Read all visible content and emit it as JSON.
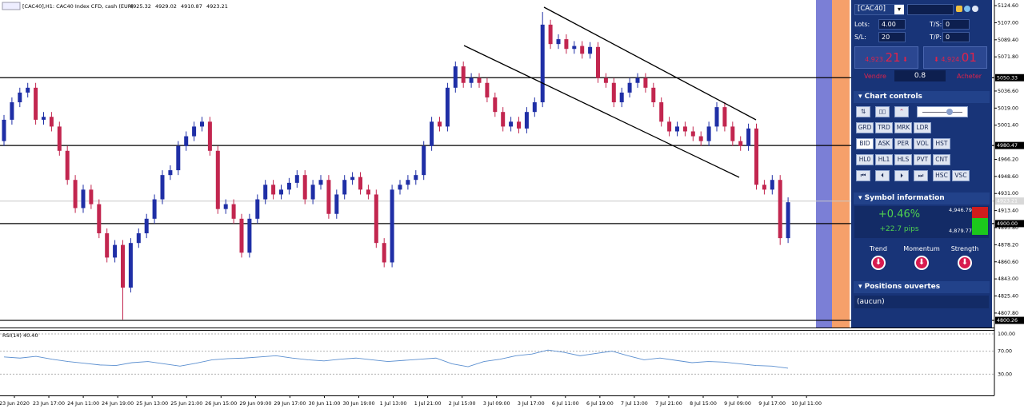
{
  "chart_data": [
    {
      "type": "candlestick",
      "title": "[CAC40],H1: CAC40 Index CFD, cash (EUR)",
      "ohlc": [
        4925.32,
        4929.02,
        4910.87,
        4923.21
      ],
      "up_color": "#1f2fa6",
      "down_color": "#c2264f",
      "open": [
        4985,
        5007,
        5025,
        5035,
        5040,
        5007,
        5010,
        5000,
        4975,
        4945,
        4916,
        4935,
        4920,
        4890,
        4865,
        4878,
        4834,
        4880,
        4890,
        4905,
        4925,
        4950,
        4955,
        4980,
        4990,
        5000,
        5005,
        4975,
        4915,
        4920,
        4905,
        4870,
        4905,
        4925,
        4940,
        4930,
        4935,
        4942,
        4950,
        4925,
        4940,
        4945,
        4910,
        4930,
        4945,
        4948,
        4935,
        4930,
        4880,
        4860,
        4935,
        4940,
        4945,
        4950,
        4980,
        5005,
        5000,
        5040,
        5062,
        5045,
        5050,
        5045,
        5030,
        5015,
        5000,
        5005,
        4998,
        5015,
        5025,
        5105,
        5085,
        5090,
        5080,
        5083,
        5075,
        5082,
        5050,
        5045,
        5025,
        5035,
        5045,
        5050,
        5040,
        5025,
        5005,
        4995,
        5000,
        4995,
        4990,
        4985,
        5000,
        5020,
        5000,
        4985,
        4980,
        4998,
        4940,
        4935,
        4945,
        4885
      ],
      "high": [
        5012,
        5030,
        5040,
        5045,
        5045,
        5015,
        5015,
        5005,
        4980,
        4950,
        4940,
        4940,
        4925,
        4895,
        4883,
        4883,
        4885,
        4895,
        4910,
        4930,
        4955,
        4960,
        4985,
        4995,
        5005,
        5010,
        5010,
        4980,
        4925,
        4925,
        4910,
        4910,
        4930,
        4945,
        4945,
        4940,
        4947,
        4955,
        4955,
        4945,
        4950,
        4950,
        4935,
        4950,
        4953,
        4953,
        4940,
        4935,
        4885,
        4940,
        4945,
        4950,
        4955,
        4985,
        5010,
        5010,
        5045,
        5067,
        5067,
        5055,
        5055,
        5050,
        5035,
        5020,
        5010,
        5010,
        5020,
        5030,
        5118,
        5110,
        5095,
        5095,
        5088,
        5088,
        5087,
        5087,
        5055,
        5050,
        5040,
        5050,
        5055,
        5055,
        5045,
        5030,
        5010,
        5005,
        5005,
        5000,
        4995,
        5005,
        5025,
        5025,
        5005,
        4990,
        5003,
        5003,
        4945,
        4950,
        4950,
        4927
      ],
      "low": [
        4980,
        5002,
        5020,
        5030,
        5002,
        5002,
        4995,
        4970,
        4940,
        4911,
        4911,
        4915,
        4885,
        4860,
        4860,
        4801,
        4829,
        4875,
        4885,
        4900,
        4920,
        4945,
        4950,
        4975,
        4985,
        4995,
        4970,
        4910,
        4910,
        4900,
        4865,
        4865,
        4900,
        4920,
        4925,
        4925,
        4930,
        4937,
        4920,
        4920,
        4935,
        4905,
        4905,
        4925,
        4940,
        4930,
        4925,
        4875,
        4855,
        4855,
        4930,
        4935,
        4940,
        4945,
        4975,
        4995,
        4995,
        5035,
        5040,
        5040,
        5040,
        5025,
        5010,
        4995,
        4995,
        4993,
        4993,
        5010,
        5020,
        5080,
        5080,
        5075,
        5075,
        5070,
        5070,
        5045,
        5040,
        5020,
        5020,
        5030,
        5040,
        5035,
        5020,
        5000,
        4990,
        4990,
        4990,
        4985,
        4980,
        4980,
        4995,
        4995,
        4980,
        4975,
        4975,
        4935,
        4930,
        4930,
        4878,
        4880
      ],
      "close": [
        5007,
        5025,
        5035,
        5040,
        5007,
        5010,
        5000,
        4975,
        4945,
        4916,
        4935,
        4920,
        4890,
        4865,
        4878,
        4834,
        4880,
        4890,
        4905,
        4925,
        4950,
        4955,
        4980,
        4990,
        5000,
        5005,
        4975,
        4915,
        4920,
        4905,
        4870,
        4905,
        4925,
        4940,
        4930,
        4935,
        4942,
        4950,
        4925,
        4940,
        4945,
        4910,
        4930,
        4945,
        4948,
        4935,
        4930,
        4880,
        4860,
        4935,
        4940,
        4945,
        4950,
        4980,
        5005,
        5000,
        5040,
        5062,
        5045,
        5050,
        5045,
        5030,
        5015,
        5000,
        5005,
        4998,
        5015,
        5025,
        5105,
        5085,
        5090,
        5080,
        5083,
        5075,
        5082,
        5050,
        5045,
        5025,
        5035,
        5045,
        5050,
        5040,
        5025,
        5005,
        4995,
        5000,
        4995,
        4990,
        4985,
        5000,
        5020,
        5000,
        4985,
        4980,
        4998,
        4940,
        4935,
        4945,
        4885,
        4922
      ],
      "ylim": [
        4792.9,
        5130.4
      ],
      "yticks": [
        {
          "value": 5124.6,
          "label": "5124.60"
        },
        {
          "value": 5107,
          "label": "5107.00"
        },
        {
          "value": 5089.4,
          "label": "5089.40"
        },
        {
          "value": 5071.8,
          "label": "5071.80"
        },
        {
          "value": 5036.6,
          "label": "5036.60"
        },
        {
          "value": 5019,
          "label": "5019.00"
        },
        {
          "value": 5001.4,
          "label": "5001.40"
        },
        {
          "value": 4966.2,
          "label": "4966.20"
        },
        {
          "value": 4948.6,
          "label": "4948.60"
        },
        {
          "value": 4931,
          "label": "4931.00"
        },
        {
          "value": 4913.4,
          "label": "4913.40"
        },
        {
          "value": 4895.8,
          "label": "4895.80"
        },
        {
          "value": 4878.2,
          "label": "4878.20"
        },
        {
          "value": 4860.6,
          "label": "4860.60"
        },
        {
          "value": 4843,
          "label": "4843.00"
        },
        {
          "value": 4825.4,
          "label": "4825.40"
        },
        {
          "value": 4807.8,
          "label": "4807.80"
        }
      ],
      "levels": [
        {
          "value": 5050.33,
          "label": "5050.33"
        },
        {
          "value": 4980.47,
          "label": "4980.47"
        },
        {
          "value": 4900,
          "label": "4900.00"
        },
        {
          "value": 4800.26,
          "label": "4800.26"
        }
      ],
      "last_price": {
        "value": 4923.21,
        "label": "4923.21"
      },
      "x_labels": [
        "23 Jun 2020",
        "23 Jun 17:00",
        "24 Jun 11:00",
        "24 Jun 19:00",
        "25 Jun 13:00",
        "25 Jun 21:00",
        "26 Jun 15:00",
        "29 Jun 09:00",
        "29 Jun 17:00",
        "30 Jun 11:00",
        "30 Jun 19:00",
        "1 Jul 13:00",
        "1 Jul 21:00",
        "2 Jul 15:00",
        "3 Jul 09:00",
        "3 Jul 17:00",
        "6 Jul 11:00",
        "6 Jul 19:00",
        "7 Jul 13:00",
        "7 Jul 21:00",
        "8 Jul 15:00",
        "9 Jul 09:00",
        "9 Jul 17:00",
        "10 Jul 11:00"
      ]
    },
    {
      "type": "line",
      "title": "RSI(14) 40.40",
      "color": "#5b8fd0",
      "values": [
        60,
        58,
        61,
        56,
        52,
        49,
        46,
        45,
        50,
        52,
        48,
        44,
        49,
        55,
        57,
        58,
        60,
        62,
        58,
        55,
        53,
        56,
        58,
        55,
        52,
        54,
        56,
        58,
        48,
        43,
        52,
        56,
        62,
        65,
        72,
        68,
        62,
        66,
        70,
        62,
        55,
        58,
        54,
        50,
        52,
        51,
        48,
        45,
        44,
        40.4
      ],
      "ylim": [
        0,
        100
      ],
      "yticks": [
        {
          "value": 100,
          "label": "100.00"
        },
        {
          "value": 70,
          "label": "70.00"
        },
        {
          "value": 30,
          "label": "30.00"
        }
      ]
    }
  ],
  "panel": {
    "symbol": "[CAC40]",
    "lots_label": "Lots:",
    "lots": "4.00",
    "sl_label": "S/L:",
    "sl": "20",
    "ts_label": "T/S:",
    "ts": "0",
    "tp_label": "T/P:",
    "tp": "0",
    "sell_small": "4,923.",
    "sell_big": "21",
    "buy_small": "4,924.",
    "buy_big": "01",
    "sell_label": "Vendre",
    "buy_label": "Acheter",
    "spread": "0.8",
    "chart_controls": "Chart controls",
    "buttons": [
      [
        "GRD",
        "TRD",
        "MRK",
        "LDR"
      ],
      [
        "BID",
        "ASK",
        "PER",
        "VOL",
        "HST"
      ],
      [
        "HL0",
        "HL1",
        "HLS",
        "PVT",
        "CNT"
      ],
      [
        "⏮",
        "⏴",
        "⏵",
        "⏭",
        "HSC",
        "VSC"
      ]
    ],
    "symbol_information": "Symbol information",
    "change_pct": "+0.46%",
    "change_pips": "+22.7 pips",
    "day_high": "4,946.79",
    "day_low": "4,879.77",
    "indicators": [
      "Trend",
      "Momentum",
      "Strength"
    ],
    "positions_title": "Positions ouvertes",
    "positions_empty": "(aucun)"
  }
}
